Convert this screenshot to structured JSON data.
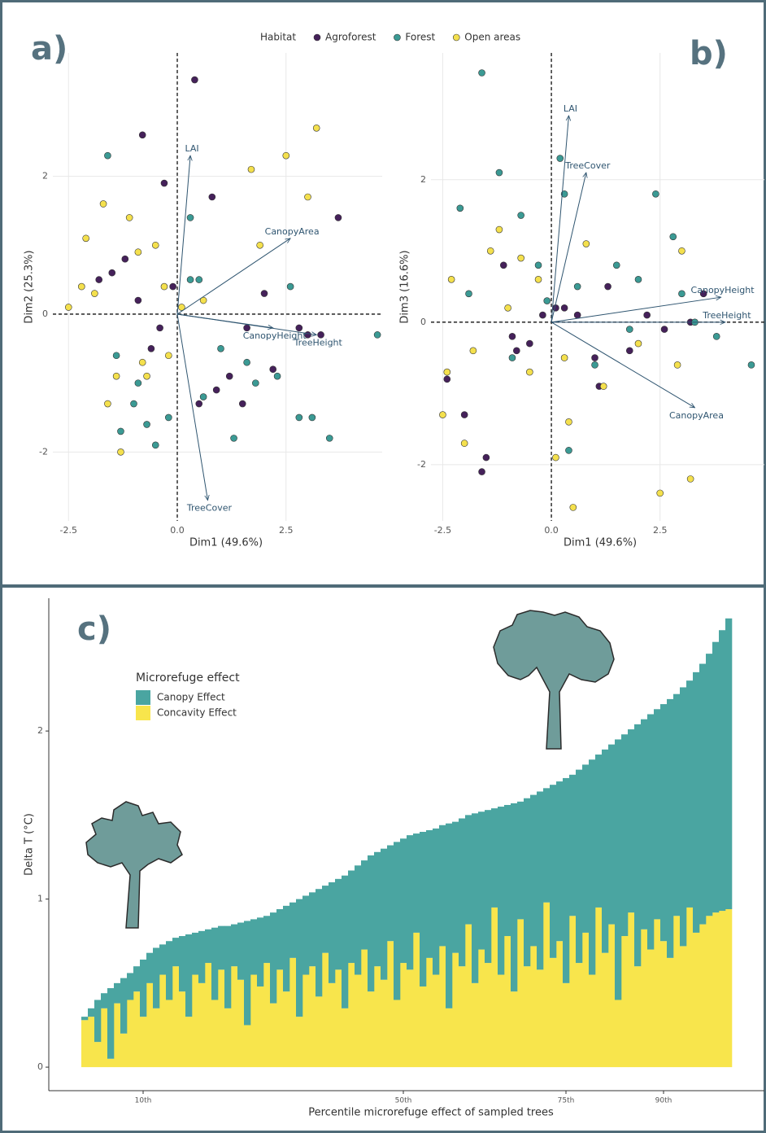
{
  "chart_data": [
    {
      "type": "scatter",
      "title": "a)",
      "x_label": "Dim1 (49.6%)",
      "y_label": "Dim2 (25.3%)",
      "legend_title": "Habitat",
      "xlim": [
        -2.86,
        4.71
      ],
      "ylim": [
        -3.0,
        3.79
      ],
      "xticks": [
        -2.5,
        {
          "value": 0,
          "label": "0.0"
        },
        2.5
      ],
      "yticks": [
        -2,
        0,
        2
      ],
      "grid": true,
      "series": [
        {
          "name": "Agroforest",
          "color": "#45215a",
          "x": [
            -1.2,
            -0.8,
            -0.3,
            0.4,
            -1.5,
            -0.9,
            -0.1,
            0.8,
            1.5,
            2.2,
            3.0,
            3.7,
            2.8,
            3.3,
            1.6,
            0.9,
            0.5,
            -0.6,
            -1.8,
            -0.4,
            1.2,
            2.0
          ],
          "y": [
            0.8,
            2.6,
            1.9,
            3.4,
            0.6,
            0.2,
            0.4,
            1.7,
            -1.3,
            -0.8,
            -0.3,
            1.4,
            -0.2,
            -0.3,
            -0.2,
            -1.1,
            -1.3,
            -0.5,
            0.5,
            -0.2,
            -0.9,
            0.3
          ]
        },
        {
          "name": "Forest",
          "color": "#3b9a94",
          "x": [
            -1.6,
            -1.3,
            -1.0,
            -0.7,
            -0.5,
            -0.2,
            0.3,
            0.6,
            1.0,
            1.3,
            1.8,
            2.3,
            2.8,
            3.1,
            3.5,
            4.6,
            2.6,
            0.3,
            -0.9,
            -1.4,
            0.5,
            1.6
          ],
          "y": [
            2.3,
            -1.7,
            -1.3,
            -1.6,
            -1.9,
            -1.5,
            0.5,
            -1.2,
            -0.5,
            -1.8,
            -1.0,
            -0.9,
            -1.5,
            -1.5,
            -1.8,
            -0.3,
            0.4,
            1.4,
            -1.0,
            -0.6,
            0.5,
            -0.7
          ]
        },
        {
          "name": "Open areas",
          "color": "#f4e04d",
          "x": [
            -2.5,
            -2.1,
            -1.9,
            -1.7,
            -1.4,
            -1.1,
            -0.8,
            -0.5,
            -0.3,
            0.1,
            -2.2,
            -1.6,
            -1.3,
            -0.9,
            -0.2,
            0.6,
            1.7,
            2.5,
            3.2,
            3.0,
            1.9,
            -0.7
          ],
          "y": [
            0.1,
            1.1,
            0.3,
            1.6,
            -0.9,
            1.4,
            -0.7,
            1.0,
            0.4,
            0.1,
            0.4,
            -1.3,
            -2.0,
            0.9,
            -0.6,
            0.2,
            2.1,
            2.3,
            2.7,
            1.7,
            1.0,
            -0.9
          ]
        }
      ],
      "vectors": [
        {
          "name": "LAI",
          "x": 0.3,
          "y": 2.3
        },
        {
          "name": "CanopyArea",
          "x": 2.6,
          "y": 1.1
        },
        {
          "name": "CanopyHeight",
          "x": 2.2,
          "y": -0.2
        },
        {
          "name": "TreeHeight",
          "x": 3.2,
          "y": -0.3
        },
        {
          "name": "TreeCover",
          "x": 0.7,
          "y": -2.7
        }
      ]
    },
    {
      "type": "scatter",
      "title": "b)",
      "x_label": "Dim1 (49.6%)",
      "y_label": "Dim3 (16.6%)",
      "xlim": [
        -2.77,
        4.9
      ],
      "ylim": [
        -2.79,
        3.78
      ],
      "xticks": [
        -2.5,
        {
          "value": 0,
          "label": "0.0"
        },
        2.5
      ],
      "yticks": [
        -2,
        0,
        2
      ],
      "grid": true,
      "series": [
        {
          "color": "#45215a",
          "x": [
            -1.5,
            -0.8,
            -0.2,
            0.3,
            1.0,
            1.8,
            2.6,
            3.5,
            -2.0,
            -1.1,
            0.6,
            1.3,
            -1.6,
            -0.5,
            0.1,
            2.2,
            -0.9,
            3.2,
            -2.4,
            1.1
          ],
          "y": [
            -1.9,
            -0.4,
            0.1,
            0.2,
            -0.5,
            -0.4,
            -0.1,
            0.4,
            -1.3,
            0.8,
            0.1,
            0.5,
            -2.1,
            -0.3,
            0.2,
            0.1,
            -0.2,
            0.0,
            -0.8,
            -0.9
          ]
        },
        {
          "color": "#3b9a94",
          "x": [
            -1.6,
            -1.2,
            -0.7,
            -0.3,
            0.2,
            0.3,
            0.6,
            1.0,
            1.5,
            2.0,
            2.4,
            2.8,
            3.0,
            3.3,
            4.6,
            -1.9,
            -0.9,
            0.4,
            1.8,
            -2.1,
            -0.1,
            3.8
          ],
          "y": [
            3.5,
            2.1,
            1.5,
            0.8,
            2.3,
            1.8,
            0.5,
            -0.6,
            0.8,
            0.6,
            1.8,
            1.2,
            0.4,
            0.0,
            -0.6,
            0.4,
            -0.5,
            -1.8,
            -0.1,
            1.6,
            0.3,
            -0.2
          ]
        },
        {
          "color": "#f4e04d",
          "x": [
            -2.5,
            -2.3,
            -1.8,
            -1.4,
            -1.0,
            -0.5,
            0.1,
            0.5,
            0.8,
            1.2,
            2.0,
            2.5,
            2.9,
            3.2,
            -2.0,
            -1.2,
            -0.3,
            0.3,
            3.0,
            -2.4,
            0.4,
            -0.7
          ],
          "y": [
            -1.3,
            0.6,
            -0.4,
            1.0,
            0.2,
            -0.7,
            -1.9,
            -2.6,
            1.1,
            -0.9,
            -0.3,
            -2.4,
            -0.6,
            -2.2,
            -1.7,
            1.3,
            0.6,
            -0.5,
            1.0,
            -0.7,
            -1.4,
            0.9
          ]
        }
      ],
      "vectors": [
        {
          "name": "LAI",
          "x": 0.4,
          "y": 2.9
        },
        {
          "name": "TreeCover",
          "x": 0.8,
          "y": 2.1
        },
        {
          "name": "CanopyHeight",
          "x": 3.9,
          "y": 0.35
        },
        {
          "name": "TreeHeight",
          "x": 4.0,
          "y": 0.0
        },
        {
          "name": "CanopyArea",
          "x": 3.3,
          "y": -1.2
        }
      ]
    },
    {
      "type": "bar",
      "title": "c)",
      "x_label": "Percentile microrefuge effect of sampled trees",
      "y_label": "Delta T (°C)",
      "legend_title": "Microrefuge effect",
      "xlim": [
        -4.5,
        105.5
      ],
      "ylim": [
        -0.14,
        2.79
      ],
      "xticks": [
        {
          "value": 10,
          "label": "10th"
        },
        {
          "value": 50,
          "label": "50th"
        },
        {
          "value": 75,
          "label": "75th"
        },
        {
          "value": 90,
          "label": "90th"
        }
      ],
      "yticks": [
        0,
        1,
        2
      ],
      "x": [
        1,
        2,
        3,
        4,
        5,
        6,
        7,
        8,
        9,
        10,
        11,
        12,
        13,
        14,
        15,
        16,
        17,
        18,
        19,
        20,
        21,
        22,
        23,
        24,
        25,
        26,
        27,
        28,
        29,
        30,
        31,
        32,
        33,
        34,
        35,
        36,
        37,
        38,
        39,
        40,
        41,
        42,
        43,
        44,
        45,
        46,
        47,
        48,
        49,
        50,
        51,
        52,
        53,
        54,
        55,
        56,
        57,
        58,
        59,
        60,
        61,
        62,
        63,
        64,
        65,
        66,
        67,
        68,
        69,
        70,
        71,
        72,
        73,
        74,
        75,
        76,
        77,
        78,
        79,
        80,
        81,
        82,
        83,
        84,
        85,
        86,
        87,
        88,
        89,
        90,
        91,
        92,
        93,
        94,
        95,
        96,
        97,
        98,
        99,
        100
      ],
      "series": [
        {
          "name": "Canopy Effect",
          "color": "#4aa5a1",
          "values": [
            0.02,
            0.05,
            0.25,
            0.09,
            0.42,
            0.12,
            0.33,
            0.16,
            0.15,
            0.34,
            0.18,
            0.36,
            0.18,
            0.35,
            0.17,
            0.33,
            0.49,
            0.25,
            0.31,
            0.2,
            0.43,
            0.26,
            0.49,
            0.25,
            0.34,
            0.62,
            0.33,
            0.41,
            0.28,
            0.54,
            0.36,
            0.51,
            0.33,
            0.7,
            0.47,
            0.44,
            0.64,
            0.4,
            0.6,
            0.54,
            0.79,
            0.55,
            0.65,
            0.53,
            0.81,
            0.68,
            0.78,
            0.57,
            0.94,
            0.74,
            0.8,
            0.59,
            0.92,
            0.76,
            0.87,
            0.72,
            1.1,
            0.78,
            0.88,
            0.65,
            1.01,
            0.82,
            0.91,
            0.59,
            1.0,
            0.78,
            1.12,
            0.7,
            1.0,
            0.9,
            1.06,
            0.68,
            1.03,
            0.95,
            1.22,
            0.84,
            1.15,
            1.0,
            1.28,
            0.91,
            1.21,
            1.07,
            1.55,
            1.2,
            1.09,
            1.44,
            1.25,
            1.4,
            1.25,
            1.41,
            1.54,
            1.32,
            1.54,
            1.35,
            1.55,
            1.55,
            1.56,
            1.61,
            1.67,
            1.73
          ]
        },
        {
          "name": "Concavity Effect",
          "color": "#f8e54c",
          "values": [
            0.28,
            0.3,
            0.15,
            0.35,
            0.05,
            0.38,
            0.2,
            0.4,
            0.45,
            0.3,
            0.5,
            0.35,
            0.55,
            0.4,
            0.6,
            0.45,
            0.3,
            0.55,
            0.5,
            0.62,
            0.4,
            0.58,
            0.35,
            0.6,
            0.52,
            0.25,
            0.55,
            0.48,
            0.62,
            0.38,
            0.58,
            0.45,
            0.65,
            0.3,
            0.55,
            0.6,
            0.42,
            0.68,
            0.5,
            0.58,
            0.35,
            0.62,
            0.55,
            0.7,
            0.45,
            0.6,
            0.52,
            0.75,
            0.4,
            0.62,
            0.58,
            0.8,
            0.48,
            0.65,
            0.55,
            0.72,
            0.35,
            0.68,
            0.6,
            0.85,
            0.5,
            0.7,
            0.62,
            0.95,
            0.55,
            0.78,
            0.45,
            0.88,
            0.6,
            0.72,
            0.58,
            0.98,
            0.65,
            0.75,
            0.5,
            0.9,
            0.62,
            0.8,
            0.55,
            0.95,
            0.68,
            0.85,
            0.4,
            0.78,
            0.92,
            0.6,
            0.82,
            0.7,
            0.88,
            0.75,
            0.65,
            0.9,
            0.72,
            0.95,
            0.8,
            0.85,
            0.9,
            0.92,
            0.93,
            0.94
          ]
        }
      ]
    }
  ]
}
